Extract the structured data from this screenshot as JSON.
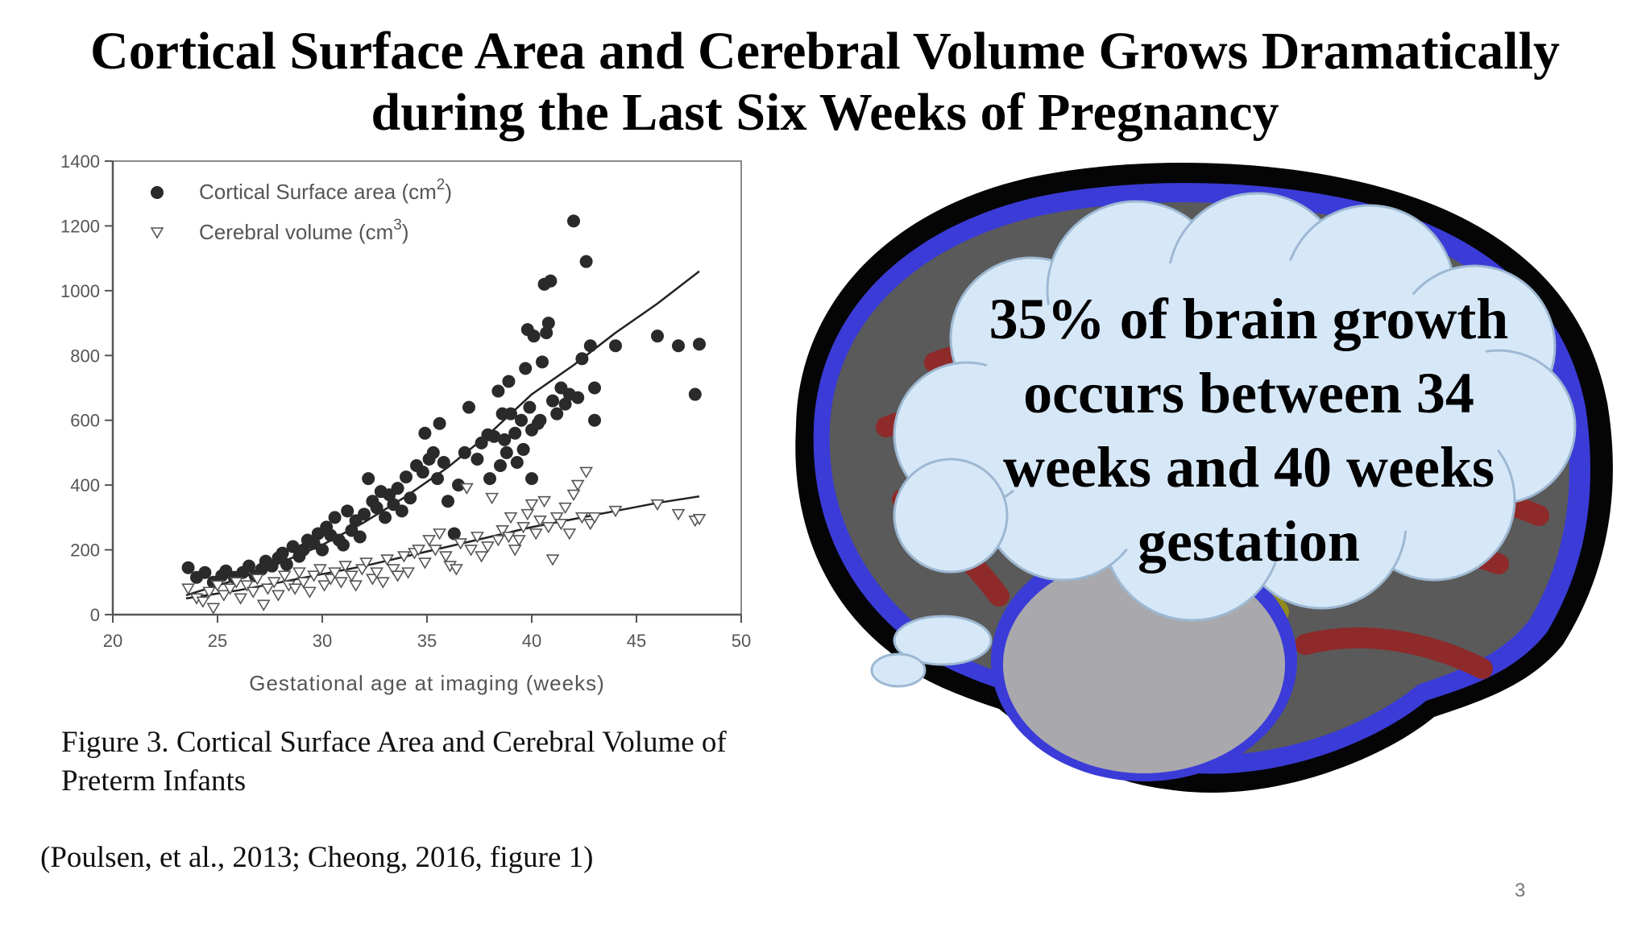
{
  "slide": {
    "title_line1": "Cortical Surface Area and Cerebral Volume Grows Dramatically",
    "title_line2": "during the Last Six Weeks of Pregnancy",
    "caption_line1": "Figure 3. Cortical Surface Area and Cerebral Volume of",
    "caption_line2": "Preterm Infants",
    "citation": "(Poulsen, et al., 2013; Cheong, 2016, figure 1)",
    "page_number": "3",
    "bubble_text_lines": [
      "35% of brain growth",
      "occurs between 34",
      "weeks and 40 weeks",
      "gestation"
    ],
    "colors": {
      "brain_outline": "#050505",
      "gray_matter": "#5a5a5a",
      "white_matter": "#8e2a2a",
      "csf": "#3b3bd8",
      "cerebellum": "#a9a9ad",
      "cloud_fill": "#d6e8f8",
      "cloud_stroke": "#9db8d2"
    }
  },
  "chart_data": {
    "type": "scatter",
    "xlabel": "Gestational age at imaging (weeks)",
    "xlim": [
      20,
      50
    ],
    "ylim": [
      0,
      1400
    ],
    "x_ticks": [
      20,
      25,
      30,
      35,
      40,
      45,
      50
    ],
    "y_ticks": [
      0,
      200,
      400,
      600,
      800,
      1000,
      1200,
      1400
    ],
    "legend_position": "top-left",
    "series": [
      {
        "name": "Cortical Surface area (cm",
        "name_sup": "2",
        "name_end": ")",
        "marker": "filled-circle",
        "fit": [
          [
            23.5,
            60
          ],
          [
            26,
            110
          ],
          [
            28,
            160
          ],
          [
            30,
            215
          ],
          [
            32,
            285
          ],
          [
            34,
            365
          ],
          [
            36,
            455
          ],
          [
            38,
            560
          ],
          [
            40,
            680
          ],
          [
            42,
            770
          ],
          [
            44,
            870
          ],
          [
            46,
            960
          ],
          [
            48,
            1060
          ]
        ],
        "points": [
          [
            23.6,
            145
          ],
          [
            24,
            115
          ],
          [
            24.4,
            130
          ],
          [
            24.8,
            100
          ],
          [
            25.2,
            120
          ],
          [
            25.4,
            135
          ],
          [
            25.8,
            115
          ],
          [
            26.2,
            130
          ],
          [
            26.5,
            150
          ],
          [
            26.8,
            120
          ],
          [
            27.1,
            140
          ],
          [
            27.3,
            165
          ],
          [
            27.6,
            150
          ],
          [
            27.9,
            175
          ],
          [
            28.1,
            190
          ],
          [
            28.3,
            155
          ],
          [
            28.6,
            210
          ],
          [
            28.9,
            180
          ],
          [
            29.1,
            200
          ],
          [
            29.3,
            230
          ],
          [
            29.6,
            220
          ],
          [
            29.8,
            250
          ],
          [
            30,
            200
          ],
          [
            30.2,
            270
          ],
          [
            30.4,
            245
          ],
          [
            30.6,
            300
          ],
          [
            30.8,
            230
          ],
          [
            31,
            215
          ],
          [
            31.2,
            320
          ],
          [
            31.4,
            260
          ],
          [
            31.6,
            290
          ],
          [
            31.8,
            240
          ],
          [
            32,
            310
          ],
          [
            32.2,
            420
          ],
          [
            32.4,
            350
          ],
          [
            32.6,
            330
          ],
          [
            32.8,
            380
          ],
          [
            33,
            300
          ],
          [
            33.2,
            370
          ],
          [
            33.4,
            340
          ],
          [
            33.6,
            390
          ],
          [
            33.8,
            320
          ],
          [
            34,
            425
          ],
          [
            34.2,
            360
          ],
          [
            34.5,
            460
          ],
          [
            34.8,
            440
          ],
          [
            34.9,
            560
          ],
          [
            35.1,
            480
          ],
          [
            35.3,
            500
          ],
          [
            35.5,
            420
          ],
          [
            35.6,
            590
          ],
          [
            35.8,
            470
          ],
          [
            36,
            350
          ],
          [
            36.3,
            250
          ],
          [
            36.5,
            400
          ],
          [
            36.8,
            500
          ],
          [
            37,
            640
          ],
          [
            37.4,
            480
          ],
          [
            37.6,
            530
          ],
          [
            37.9,
            555
          ],
          [
            38,
            420
          ],
          [
            38.2,
            550
          ],
          [
            38.4,
            690
          ],
          [
            38.5,
            460
          ],
          [
            38.6,
            620
          ],
          [
            38.7,
            540
          ],
          [
            38.8,
            500
          ],
          [
            38.9,
            720
          ],
          [
            39,
            620
          ],
          [
            39.2,
            560
          ],
          [
            39.3,
            470
          ],
          [
            39.5,
            600
          ],
          [
            39.6,
            510
          ],
          [
            39.7,
            760
          ],
          [
            39.8,
            880
          ],
          [
            39.9,
            640
          ],
          [
            40,
            570
          ],
          [
            40,
            420
          ],
          [
            40.1,
            860
          ],
          [
            40.3,
            590
          ],
          [
            40.4,
            600
          ],
          [
            40.5,
            780
          ],
          [
            40.6,
            1020
          ],
          [
            40.7,
            870
          ],
          [
            40.8,
            900
          ],
          [
            40.9,
            1030
          ],
          [
            41,
            660
          ],
          [
            41.2,
            620
          ],
          [
            41.4,
            700
          ],
          [
            41.6,
            650
          ],
          [
            41.8,
            680
          ],
          [
            42,
            1215
          ],
          [
            42.2,
            670
          ],
          [
            42.4,
            790
          ],
          [
            42.6,
            1090
          ],
          [
            42.8,
            830
          ],
          [
            43,
            700
          ],
          [
            43,
            600
          ],
          [
            44,
            830
          ],
          [
            46,
            860
          ],
          [
            47,
            830
          ],
          [
            47.8,
            680
          ],
          [
            48,
            835
          ]
        ]
      },
      {
        "name": "Cerebral volume (cm",
        "name_sup": "3",
        "name_end": ")",
        "marker": "open-triangle-down",
        "fit": [
          [
            23.5,
            50
          ],
          [
            26,
            75
          ],
          [
            28,
            100
          ],
          [
            30,
            125
          ],
          [
            32,
            150
          ],
          [
            34,
            180
          ],
          [
            36,
            210
          ],
          [
            38,
            240
          ],
          [
            40,
            270
          ],
          [
            42,
            295
          ],
          [
            44,
            320
          ],
          [
            46,
            345
          ],
          [
            48,
            365
          ]
        ],
        "points": [
          [
            23.6,
            80
          ],
          [
            24,
            50
          ],
          [
            24.3,
            40
          ],
          [
            24.6,
            70
          ],
          [
            24.8,
            20
          ],
          [
            25,
            90
          ],
          [
            25.3,
            60
          ],
          [
            25.6,
            80
          ],
          [
            25.9,
            100
          ],
          [
            26.1,
            50
          ],
          [
            26.4,
            90
          ],
          [
            26.7,
            70
          ],
          [
            26.9,
            110
          ],
          [
            27.2,
            30
          ],
          [
            27.4,
            80
          ],
          [
            27.7,
            100
          ],
          [
            27.9,
            60
          ],
          [
            28.2,
            120
          ],
          [
            28.4,
            90
          ],
          [
            28.7,
            80
          ],
          [
            28.9,
            130
          ],
          [
            29.1,
            100
          ],
          [
            29.4,
            70
          ],
          [
            29.6,
            120
          ],
          [
            29.9,
            140
          ],
          [
            30.1,
            90
          ],
          [
            30.4,
            110
          ],
          [
            30.6,
            130
          ],
          [
            30.9,
            100
          ],
          [
            31.1,
            150
          ],
          [
            31.4,
            120
          ],
          [
            31.6,
            90
          ],
          [
            31.9,
            140
          ],
          [
            32.1,
            160
          ],
          [
            32.4,
            110
          ],
          [
            32.6,
            130
          ],
          [
            32.9,
            100
          ],
          [
            33.1,
            170
          ],
          [
            33.4,
            140
          ],
          [
            33.6,
            120
          ],
          [
            33.9,
            180
          ],
          [
            34.1,
            130
          ],
          [
            34.4,
            190
          ],
          [
            34.6,
            200
          ],
          [
            34.9,
            160
          ],
          [
            35.1,
            230
          ],
          [
            35.4,
            200
          ],
          [
            35.6,
            250
          ],
          [
            35.9,
            180
          ],
          [
            36.1,
            150
          ],
          [
            36.4,
            140
          ],
          [
            36.6,
            220
          ],
          [
            36.9,
            390
          ],
          [
            37.1,
            200
          ],
          [
            37.4,
            240
          ],
          [
            37.6,
            180
          ],
          [
            37.9,
            210
          ],
          [
            38.1,
            360
          ],
          [
            38.4,
            230
          ],
          [
            38.6,
            260
          ],
          [
            38.9,
            240
          ],
          [
            39,
            300
          ],
          [
            39.2,
            200
          ],
          [
            39.4,
            230
          ],
          [
            39.6,
            270
          ],
          [
            39.8,
            310
          ],
          [
            40,
            340
          ],
          [
            40.2,
            250
          ],
          [
            40.4,
            290
          ],
          [
            40.6,
            350
          ],
          [
            40.8,
            270
          ],
          [
            41,
            170
          ],
          [
            41.2,
            300
          ],
          [
            41.4,
            280
          ],
          [
            41.6,
            330
          ],
          [
            41.8,
            250
          ],
          [
            42,
            370
          ],
          [
            42.2,
            400
          ],
          [
            42.4,
            300
          ],
          [
            42.6,
            440
          ],
          [
            42.8,
            280
          ],
          [
            43,
            300
          ],
          [
            44,
            320
          ],
          [
            46,
            340
          ],
          [
            47,
            310
          ],
          [
            47.8,
            290
          ],
          [
            48,
            295
          ]
        ]
      }
    ]
  }
}
